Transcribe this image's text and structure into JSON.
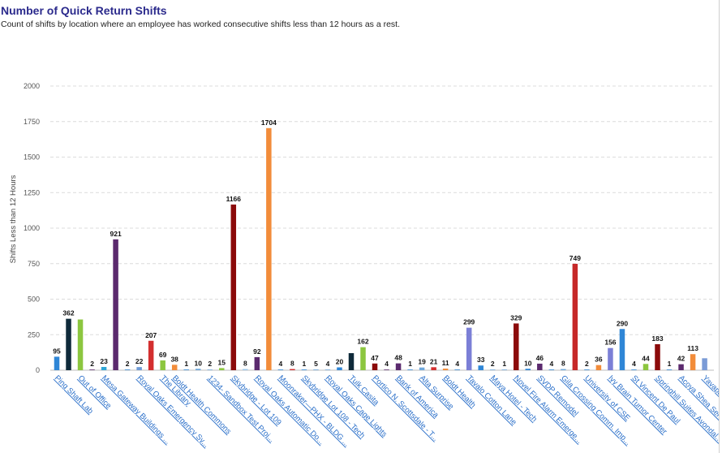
{
  "header": {
    "title": "Number of Quick Return Shifts",
    "subtitle": "Count of shifts by location where an employee has worked consecutive shifts less than 12 hours as a rest."
  },
  "colors": {
    "title": "#2b2a8c",
    "link": "#2a6fc9",
    "palette": [
      "#2f86d6",
      "#0f2a3a",
      "#8cc63f",
      "#5b2a6e",
      "#d32f2f",
      "#f28c3a",
      "#9bc8ec",
      "#8b0a0a",
      "#7b7fd6",
      "#2f86d6"
    ]
  },
  "chart_data": {
    "type": "bar",
    "title": "Number of Quick Return Shifts",
    "ylabel": "Shifts Less than 12 Hours",
    "ylim": [
      0,
      2000
    ],
    "yticks": [
      0,
      250,
      500,
      750,
      1000,
      1250,
      1500,
      1750,
      2000
    ],
    "grid": true,
    "values": [
      95,
      362,
      357,
      2,
      23,
      921,
      2,
      22,
      207,
      69,
      38,
      1,
      10,
      2,
      15,
      1166,
      8,
      92,
      1704,
      4,
      8,
      1,
      5,
      4,
      20,
      120,
      162,
      47,
      4,
      48,
      1,
      19,
      21,
      11,
      4,
      299,
      33,
      2,
      1,
      329,
      10,
      46,
      4,
      8,
      749,
      2,
      36,
      156,
      290,
      4,
      44,
      183,
      1,
      42,
      113,
      84
    ],
    "value_labels": [
      "95",
      "362",
      "",
      "2",
      "23",
      "921",
      "2",
      "22",
      "207",
      "69",
      "38",
      "1",
      "10",
      "2",
      "15",
      "1166",
      "8",
      "92",
      "1704",
      "4",
      "8",
      "1",
      "5",
      "4",
      "20",
      "",
      "162",
      "47",
      "4",
      "48",
      "1",
      "19",
      "21",
      "11",
      "4",
      "299",
      "33",
      "2",
      "1",
      "329",
      "10",
      "46",
      "4",
      "8",
      "749",
      "2",
      "36",
      "156",
      "290",
      "4",
      "44",
      "183",
      "1",
      "42",
      "113",
      ""
    ],
    "colors": [
      "#2f86d6",
      "#0f2a3a",
      "#8cc63f",
      "#5b2a6e",
      "#2fa6d6",
      "#5b2a6e",
      "#2f86d6",
      "#6f9bd6",
      "#d32f2f",
      "#8cc63f",
      "#f28c3a",
      "#2f86d6",
      "#6fa8dc",
      "#6fa8dc",
      "#8cc63f",
      "#8b0a0a",
      "#9bc8ec",
      "#5b2a6e",
      "#f28c3a",
      "#2f86d6",
      "#d32f2f",
      "#2f86d6",
      "#6fa8dc",
      "#6fa8dc",
      "#2f86d6",
      "#0f2a3a",
      "#8cc63f",
      "#8b0a0a",
      "#5b2a6e",
      "#5b2a6e",
      "#2f86d6",
      "#6fa8dc",
      "#d32f2f",
      "#f28c3a",
      "#2f86d6",
      "#7b7fd6",
      "#2f86d6",
      "#6fa8dc",
      "#6fa8dc",
      "#8b0a0a",
      "#2f86d6",
      "#5b2a6e",
      "#2f86d6",
      "#6fa8dc",
      "#c62828",
      "#2f86d6",
      "#f28c3a",
      "#7b7fd6",
      "#2f86d6",
      "#2f86d6",
      "#8cc63f",
      "#8b0a0a",
      "#2f86d6",
      "#5b2a6e",
      "#f28c3a",
      "#7b9bd6"
    ],
    "x_labels": [
      {
        "index": 0,
        "text": "Ping Shaft Lab"
      },
      {
        "index": 2,
        "text": "Out of Office"
      },
      {
        "index": 4,
        "text": "Mesa Gateway Buildings ..."
      },
      {
        "index": 7,
        "text": "Royal Oaks Emergency Sy..."
      },
      {
        "index": 9,
        "text": "The Library"
      },
      {
        "index": 10,
        "text": "Boldt Health Commons"
      },
      {
        "index": 13,
        "text": "1234- Sandbox Test Proj..."
      },
      {
        "index": 15,
        "text": "Skybridge - Lot 109"
      },
      {
        "index": 17,
        "text": "Royal Oaks Automatic Do..."
      },
      {
        "index": 19,
        "text": "Moonraker—PHX - BLDG ..."
      },
      {
        "index": 21,
        "text": "Skybridge Lot 108 - Tech"
      },
      {
        "index": 23,
        "text": "Royal Oaks Cage Lights"
      },
      {
        "index": 25,
        "text": "Tulk Casita"
      },
      {
        "index": 27,
        "text": "Portico N. Scottsdale - T..."
      },
      {
        "index": 29,
        "text": "Bank of America"
      },
      {
        "index": 31,
        "text": "Alta Surprise"
      },
      {
        "index": 33,
        "text": "Boldt Health"
      },
      {
        "index": 35,
        "text": "Tavalo Cotton Lane"
      },
      {
        "index": 37,
        "text": "Maya Hotel - Tech"
      },
      {
        "index": 39,
        "text": "Novel Fire Alarm Emerge..."
      },
      {
        "index": 41,
        "text": "SVDP Remodel"
      },
      {
        "index": 43,
        "text": "Gila Crossing Comm. Imp..."
      },
      {
        "index": 45,
        "text": "University of CSE"
      },
      {
        "index": 47,
        "text": "Ivy Brain Tumor Center"
      },
      {
        "index": 49,
        "text": "St Vincent De Paul"
      },
      {
        "index": 51,
        "text": "Springhill Suites Avondal..."
      },
      {
        "index": 53,
        "text": "Acoya Shea Senior Livi..."
      },
      {
        "index": 55,
        "text": "Yavapai C..."
      }
    ]
  }
}
